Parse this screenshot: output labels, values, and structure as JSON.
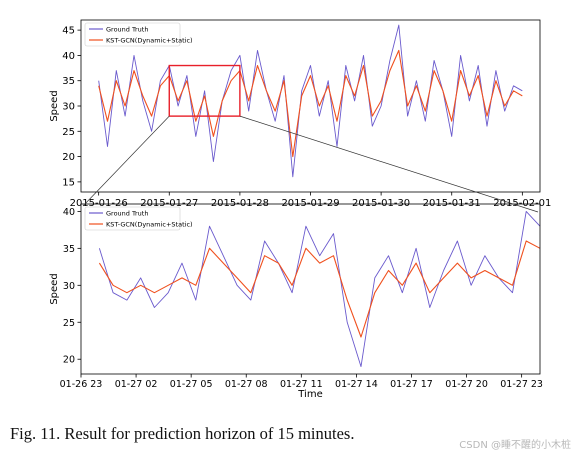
{
  "caption": "Fig. 11.   Result for prediction horizon of 15 minutes.",
  "watermark": "CSDN @睡不醒的小木桩",
  "colors": {
    "ground_truth": "#6a5acd",
    "prediction": "#f0501e",
    "zoom_box": "#e8202a",
    "connector": "#333333"
  },
  "chart_data": [
    {
      "type": "line",
      "ylabel": "Speed",
      "xlabel": "",
      "ylim": [
        13,
        47
      ],
      "yticks": [
        15,
        20,
        25,
        30,
        35,
        40,
        45
      ],
      "xlim": [
        "2015-01-25 18:00",
        "2015-02-01 06:00"
      ],
      "xticks": [
        "2015-01-26",
        "2015-01-27",
        "2015-01-28",
        "2015-01-29",
        "2015-01-30",
        "2015-01-31",
        "2015-02-01"
      ],
      "legend": {
        "position": "top-left",
        "entries": [
          "Ground Truth",
          "KST-GCN(Dynamic+Static)"
        ]
      },
      "grid": false,
      "zoom_region": {
        "x_start": "2015-01-27 00:00",
        "x_end": "2015-01-28 00:00",
        "y_range": [
          28,
          38
        ]
      },
      "series": [
        {
          "name": "Ground Truth",
          "x": [
            "2015-01-26 00:00",
            "2015-01-26 03:00",
            "2015-01-26 06:00",
            "2015-01-26 09:00",
            "2015-01-26 12:00",
            "2015-01-26 15:00",
            "2015-01-26 18:00",
            "2015-01-26 21:00",
            "2015-01-27 00:00",
            "2015-01-27 03:00",
            "2015-01-27 06:00",
            "2015-01-27 09:00",
            "2015-01-27 12:00",
            "2015-01-27 15:00",
            "2015-01-27 18:00",
            "2015-01-27 21:00",
            "2015-01-28 00:00",
            "2015-01-28 03:00",
            "2015-01-28 06:00",
            "2015-01-28 09:00",
            "2015-01-28 12:00",
            "2015-01-28 15:00",
            "2015-01-28 18:00",
            "2015-01-28 21:00",
            "2015-01-29 00:00",
            "2015-01-29 03:00",
            "2015-01-29 06:00",
            "2015-01-29 09:00",
            "2015-01-29 12:00",
            "2015-01-29 15:00",
            "2015-01-29 18:00",
            "2015-01-29 21:00",
            "2015-01-30 00:00",
            "2015-01-30 03:00",
            "2015-01-30 06:00",
            "2015-01-30 09:00",
            "2015-01-30 12:00",
            "2015-01-30 15:00",
            "2015-01-30 18:00",
            "2015-01-30 21:00",
            "2015-01-31 00:00",
            "2015-01-31 03:00",
            "2015-01-31 06:00",
            "2015-01-31 09:00",
            "2015-01-31 12:00",
            "2015-01-31 15:00",
            "2015-01-31 18:00",
            "2015-01-31 21:00",
            "2015-02-01 00:00"
          ],
          "values": [
            35,
            22,
            37,
            28,
            40,
            31,
            25,
            35,
            38,
            30,
            36,
            24,
            33,
            19,
            31,
            37,
            40,
            29,
            41,
            33,
            27,
            36,
            16,
            33,
            38,
            28,
            35,
            22,
            38,
            31,
            40,
            26,
            30,
            39,
            46,
            28,
            35,
            27,
            39,
            33,
            24,
            40,
            31,
            38,
            26,
            37,
            29,
            34,
            33
          ]
        },
        {
          "name": "KST-GCN(Dynamic+Static)",
          "x": [
            "2015-01-26 00:00",
            "2015-01-26 03:00",
            "2015-01-26 06:00",
            "2015-01-26 09:00",
            "2015-01-26 12:00",
            "2015-01-26 15:00",
            "2015-01-26 18:00",
            "2015-01-26 21:00",
            "2015-01-27 00:00",
            "2015-01-27 03:00",
            "2015-01-27 06:00",
            "2015-01-27 09:00",
            "2015-01-27 12:00",
            "2015-01-27 15:00",
            "2015-01-27 18:00",
            "2015-01-27 21:00",
            "2015-01-28 00:00",
            "2015-01-28 03:00",
            "2015-01-28 06:00",
            "2015-01-28 09:00",
            "2015-01-28 12:00",
            "2015-01-28 15:00",
            "2015-01-28 18:00",
            "2015-01-28 21:00",
            "2015-01-29 00:00",
            "2015-01-29 03:00",
            "2015-01-29 06:00",
            "2015-01-29 09:00",
            "2015-01-29 12:00",
            "2015-01-29 15:00",
            "2015-01-29 18:00",
            "2015-01-29 21:00",
            "2015-01-30 00:00",
            "2015-01-30 03:00",
            "2015-01-30 06:00",
            "2015-01-30 09:00",
            "2015-01-30 12:00",
            "2015-01-30 15:00",
            "2015-01-30 18:00",
            "2015-01-30 21:00",
            "2015-01-31 00:00",
            "2015-01-31 03:00",
            "2015-01-31 06:00",
            "2015-01-31 09:00",
            "2015-01-31 12:00",
            "2015-01-31 15:00",
            "2015-01-31 18:00",
            "2015-01-31 21:00",
            "2015-02-01 00:00"
          ],
          "values": [
            34,
            27,
            35,
            30,
            37,
            32,
            28,
            34,
            36,
            31,
            35,
            27,
            32,
            24,
            31,
            35,
            37,
            31,
            38,
            33,
            29,
            35,
            20,
            32,
            36,
            30,
            34,
            27,
            36,
            32,
            38,
            28,
            31,
            37,
            41,
            30,
            34,
            29,
            37,
            33,
            27,
            37,
            32,
            36,
            28,
            35,
            30,
            33,
            32
          ]
        }
      ]
    },
    {
      "type": "line",
      "ylabel": "Speed",
      "xlabel": "Time",
      "ylim": [
        18,
        41
      ],
      "yticks": [
        20,
        25,
        30,
        35,
        40
      ],
      "xlim": [
        "2015-01-26 23:00",
        "2015-01-28 00:00"
      ],
      "xticks": [
        "01-26 23",
        "01-27 02",
        "01-27 05",
        "01-27 08",
        "01-27 11",
        "01-27 14",
        "01-27 17",
        "01-27 20",
        "01-27 23"
      ],
      "legend": {
        "position": "top-left",
        "entries": [
          "Ground Truth",
          "KST-GCN(Dynamic+Static)"
        ]
      },
      "grid": false,
      "series": [
        {
          "name": "Ground Truth",
          "x": [
            "2015-01-27 00:00",
            "2015-01-27 00:45",
            "2015-01-27 01:30",
            "2015-01-27 02:15",
            "2015-01-27 03:00",
            "2015-01-27 03:45",
            "2015-01-27 04:30",
            "2015-01-27 05:15",
            "2015-01-27 06:00",
            "2015-01-27 06:45",
            "2015-01-27 07:30",
            "2015-01-27 08:15",
            "2015-01-27 09:00",
            "2015-01-27 09:45",
            "2015-01-27 10:30",
            "2015-01-27 11:15",
            "2015-01-27 12:00",
            "2015-01-27 12:45",
            "2015-01-27 13:30",
            "2015-01-27 14:15",
            "2015-01-27 15:00",
            "2015-01-27 15:45",
            "2015-01-27 16:30",
            "2015-01-27 17:15",
            "2015-01-27 18:00",
            "2015-01-27 18:45",
            "2015-01-27 19:30",
            "2015-01-27 20:15",
            "2015-01-27 21:00",
            "2015-01-27 21:45",
            "2015-01-27 22:30",
            "2015-01-27 23:15",
            "2015-01-28 00:00"
          ],
          "values": [
            35,
            29,
            28,
            31,
            27,
            29,
            33,
            28,
            38,
            34,
            30,
            28,
            36,
            33,
            29,
            38,
            34,
            37,
            25,
            19,
            31,
            34,
            29,
            35,
            27,
            32,
            36,
            30,
            34,
            31,
            29,
            40,
            38
          ]
        },
        {
          "name": "KST-GCN(Dynamic+Static)",
          "x": [
            "2015-01-27 00:00",
            "2015-01-27 00:45",
            "2015-01-27 01:30",
            "2015-01-27 02:15",
            "2015-01-27 03:00",
            "2015-01-27 03:45",
            "2015-01-27 04:30",
            "2015-01-27 05:15",
            "2015-01-27 06:00",
            "2015-01-27 06:45",
            "2015-01-27 07:30",
            "2015-01-27 08:15",
            "2015-01-27 09:00",
            "2015-01-27 09:45",
            "2015-01-27 10:30",
            "2015-01-27 11:15",
            "2015-01-27 12:00",
            "2015-01-27 12:45",
            "2015-01-27 13:30",
            "2015-01-27 14:15",
            "2015-01-27 15:00",
            "2015-01-27 15:45",
            "2015-01-27 16:30",
            "2015-01-27 17:15",
            "2015-01-27 18:00",
            "2015-01-27 18:45",
            "2015-01-27 19:30",
            "2015-01-27 20:15",
            "2015-01-27 21:00",
            "2015-01-27 21:45",
            "2015-01-27 22:30",
            "2015-01-27 23:15",
            "2015-01-28 00:00"
          ],
          "values": [
            33,
            30,
            29,
            30,
            29,
            30,
            31,
            30,
            35,
            33,
            31,
            29,
            34,
            33,
            30,
            35,
            33,
            34,
            28,
            23,
            29,
            32,
            30,
            33,
            29,
            31,
            33,
            31,
            32,
            31,
            30,
            36,
            35
          ]
        }
      ]
    }
  ]
}
